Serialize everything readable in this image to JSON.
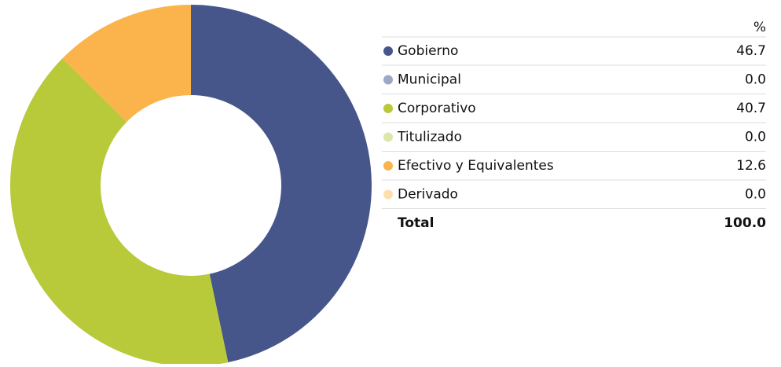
{
  "chart_data": {
    "type": "pie",
    "donut": true,
    "categories": [
      "Gobierno",
      "Municipal",
      "Corporativo",
      "Titulizado",
      "Efectivo y Equivalentes",
      "Derivado"
    ],
    "values": [
      46.7,
      0,
      40.7,
      0,
      12.6,
      0
    ],
    "value_labels": [
      "46.7",
      "0.0",
      "40.7",
      "0.0",
      "12.6",
      "0.0"
    ],
    "colors": [
      "#46568a",
      "#9da8c6",
      "#b8c93a",
      "#dce7a8",
      "#fbb34c",
      "#fddfae"
    ],
    "value_header": "%",
    "total_label": "Total",
    "total": 100,
    "total_value_label": "100.0"
  }
}
